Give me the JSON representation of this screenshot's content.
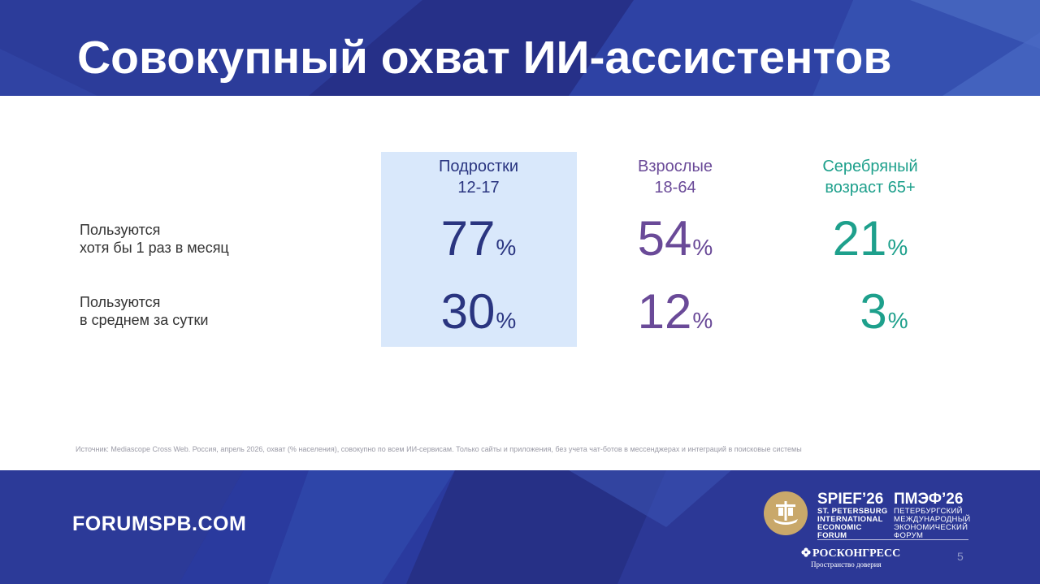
{
  "slide": {
    "title": "Совокупный охват ИИ-ассистентов",
    "columns": [
      {
        "line1": "Подростки",
        "line2": "12-17",
        "color": "#2a3580"
      },
      {
        "line1": "Взрослые",
        "line2": "18-64",
        "color": "#6a4a98"
      },
      {
        "line1": "Серебряный",
        "line2": "возраст 65+",
        "color": "#1ea08c"
      }
    ],
    "rows": [
      {
        "line1": "Пользуются",
        "line2": "хотя бы 1 раз в месяц",
        "values": [
          "77",
          "54",
          "21"
        ]
      },
      {
        "line1": "Пользуются",
        "line2": "в среднем за сутки",
        "values": [
          "30",
          "12",
          "3"
        ]
      }
    ],
    "unit": "%",
    "source": "Источник: Mediascope Cross Web. Россия, апрель 2026, охват (% населения), совокупно по всем ИИ-сервисам. Только сайты и приложения, без учета чат-ботов в мессенджерах и интеграций в поисковые системы"
  },
  "footer": {
    "site": "FORUMSPB.COM",
    "brand_en": {
      "big": "SPIEF’26",
      "lines": [
        "ST. PETERSBURG",
        "INTERNATIONAL",
        "ECONOMIC",
        "FORUM"
      ]
    },
    "brand_ru": {
      "big": "ПМЭФ’26",
      "lines": [
        "ПЕТЕРБУРГСКИЙ",
        "МЕЖДУНАРОДНЫЙ",
        "ЭКОНОМИЧЕСКИЙ",
        "ФОРУМ"
      ]
    },
    "organizer": "РОСКОНГРЕСС",
    "organizer_tagline": "Пространство доверия",
    "page_number": "5"
  },
  "colors": {
    "band": "#2a3590",
    "highlight": "#d9e8fb"
  }
}
